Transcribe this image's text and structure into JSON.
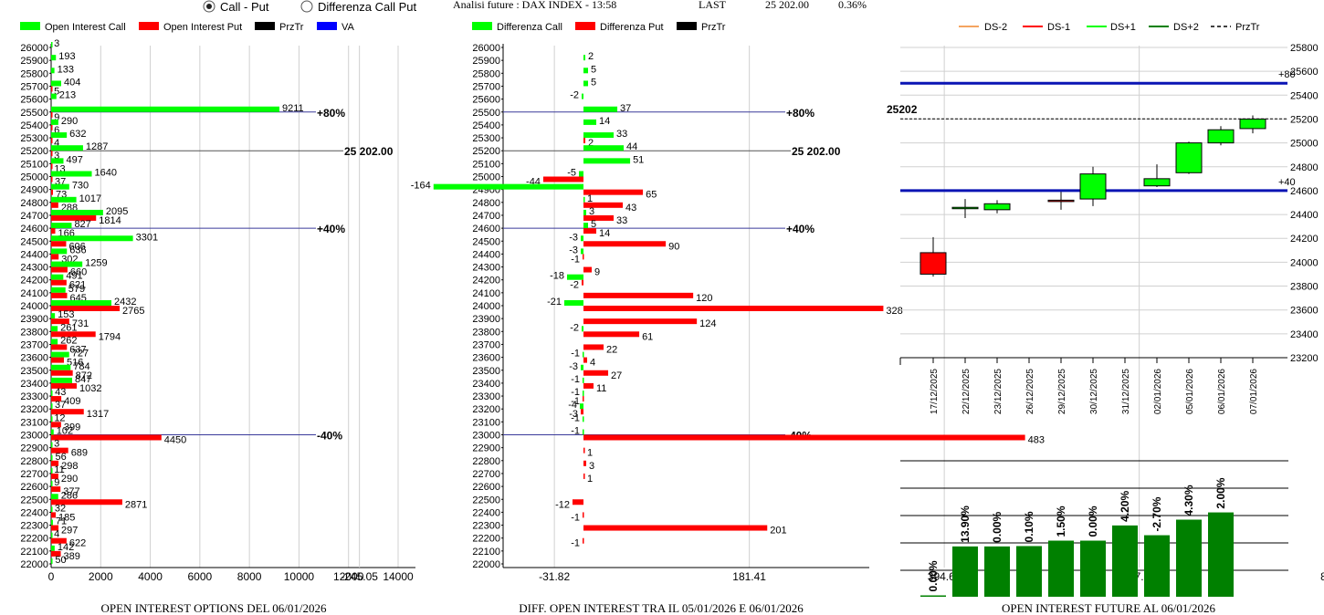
{
  "header": {
    "radio_1": "Call - Put",
    "radio_2": "Differenza Call Put",
    "analisi": "Analisi future : DAX INDEX - 13:58",
    "last_label": "LAST",
    "last_value": "25 202.00",
    "last_change": "0.36%"
  },
  "colors": {
    "green": "#00ff00",
    "red": "#ff0000",
    "black": "#000000",
    "blue": "#0000ff",
    "dark_green": "#008000",
    "navy": "#0a14b4"
  },
  "chart_data": [
    {
      "type": "bar",
      "title": "OPEN INTEREST OPTIONS DEL 06/01/2026",
      "legend": [
        "Open Interest Call",
        "Open Interest Put",
        "PrzTr",
        "VA"
      ],
      "strikes": [
        26000,
        25900,
        25800,
        25700,
        25600,
        25500,
        25400,
        25300,
        25200,
        25100,
        25000,
        24900,
        24800,
        24700,
        24600,
        24500,
        24400,
        24300,
        24200,
        24100,
        24000,
        23900,
        23800,
        23700,
        23600,
        23500,
        23400,
        23300,
        23200,
        23100,
        23000,
        22900,
        22800,
        22700,
        22600,
        22500,
        22400,
        22300,
        22200,
        22100,
        22000
      ],
      "series": [
        {
          "name": "Open Interest Call",
          "values": [
            3,
            193,
            133,
            404,
            213,
            9211,
            290,
            632,
            1287,
            497,
            1640,
            730,
            1017,
            2095,
            827,
            3301,
            636,
            1259,
            491,
            579,
            2432,
            153,
            261,
            262,
            727,
            784,
            847,
            43,
            37,
            12,
            102,
            3,
            56,
            11,
            9,
            286,
            32,
            71,
            4,
            142,
            50
          ]
        },
        {
          "name": "Open Interest Put",
          "values": [
            null,
            null,
            null,
            5,
            null,
            9,
            6,
            4,
            3,
            13,
            37,
            73,
            288,
            1814,
            166,
            606,
            302,
            660,
            621,
            645,
            2765,
            731,
            1794,
            637,
            516,
            872,
            1032,
            409,
            1317,
            399,
            4450,
            689,
            298,
            290,
            377,
            2871,
            185,
            297,
            622,
            389,
            null
          ]
        }
      ],
      "x_ticks": [
        "0",
        "2000",
        "4000",
        "6000",
        "8000",
        "10000",
        "12000",
        "14000"
      ],
      "xlim": [
        0,
        14000
      ],
      "annotations": [
        {
          "strike": 25500,
          "label": "+80%"
        },
        {
          "strike": 25200,
          "label": "25 202.00"
        },
        {
          "strike": 24600,
          "label": "+40%"
        },
        {
          "strike": 23000,
          "label": "-40%"
        }
      ]
    },
    {
      "type": "bar",
      "title": "DIFF. OPEN INTEREST TRA IL 05/01/2026 E 06/01/2026",
      "legend": [
        "Differenza Call",
        "Differenza Put",
        "PrzTr"
      ],
      "strikes": [
        26000,
        25900,
        25800,
        25700,
        25600,
        25500,
        25400,
        25300,
        25200,
        25100,
        25000,
        24900,
        24800,
        24700,
        24600,
        24500,
        24400,
        24300,
        24200,
        24100,
        24000,
        23900,
        23800,
        23700,
        23600,
        23500,
        23400,
        23300,
        23200,
        23100,
        23000,
        22900,
        22800,
        22700,
        22600,
        22500,
        22400,
        22300,
        22200,
        22100,
        22000
      ],
      "series": [
        {
          "name": "Differenza Call",
          "values": [
            null,
            2,
            5,
            5,
            -2,
            37,
            14,
            33,
            44,
            51,
            -5,
            -164,
            1,
            3,
            5,
            -3,
            -3,
            null,
            -18,
            null,
            -21,
            null,
            -2,
            null,
            -1,
            -3,
            -1,
            -1,
            -4,
            -1,
            -1,
            null,
            null,
            null,
            null,
            null,
            null,
            null,
            null,
            null,
            null
          ]
        },
        {
          "name": "Differenza Put",
          "values": [
            null,
            null,
            null,
            null,
            null,
            null,
            null,
            2,
            null,
            null,
            -44,
            65,
            43,
            33,
            14,
            90,
            -1,
            9,
            -2,
            120,
            328,
            124,
            61,
            22,
            4,
            27,
            11,
            -1,
            -3,
            null,
            483,
            1,
            3,
            1,
            null,
            -12,
            -1,
            201,
            -1,
            null,
            null
          ]
        }
      ],
      "x_ticks": [
        "-245.05",
        "-31.82",
        "181.41",
        "394.64",
        "607.87",
        "821.1"
      ],
      "xlim": [
        -245.05,
        821.1
      ],
      "annotations": [
        {
          "strike": 25500,
          "label": "+80%"
        },
        {
          "strike": 25200,
          "label": "25 202.00"
        },
        {
          "strike": 24600,
          "label": "+40%"
        },
        {
          "strike": 23000,
          "label": "-40%"
        }
      ]
    },
    {
      "type": "candlestick",
      "legend": [
        "DS-2",
        "DS-1",
        "DS+1",
        "DS+2",
        "PrzTr"
      ],
      "dates": [
        "17/12/2025",
        "22/12/2025",
        "23/12/2025",
        "26/12/2025",
        "29/12/2025",
        "30/12/2025",
        "31/12/2025",
        "02/01/2026",
        "05/01/2026",
        "06/01/2026",
        "07/01/2026"
      ],
      "ohlc": [
        [
          24080,
          24210,
          23880,
          23900
        ],
        [
          24460,
          24530,
          24370,
          24460
        ],
        [
          24440,
          24520,
          24410,
          24490
        ],
        null,
        [
          24520,
          24590,
          24440,
          24510
        ],
        [
          24530,
          24800,
          24470,
          24740
        ],
        null,
        [
          24640,
          24820,
          24630,
          24700
        ],
        [
          24750,
          25010,
          24740,
          25000
        ],
        [
          25000,
          25140,
          24980,
          25110
        ],
        [
          25120,
          25230,
          25080,
          25200
        ]
      ],
      "y_ticks": [
        "25800",
        "25600",
        "25400",
        "25200",
        "25000",
        "24800",
        "24600",
        "24400",
        "24200",
        "24000",
        "23800",
        "23600",
        "23400",
        "23200"
      ],
      "ylim": [
        23200,
        25800
      ],
      "price_label": "25202",
      "price_line": 25202,
      "blue_lines": [
        {
          "value": 25500,
          "label": "+80"
        },
        {
          "value": 24600,
          "label": "+40"
        }
      ]
    },
    {
      "type": "bar",
      "title": "OPEN INTEREST FUTURE AL 06/01/2026",
      "values": [
        0,
        13.9,
        0,
        0.1,
        1.5,
        0,
        4.2,
        -2.7,
        4.3,
        2.0
      ],
      "labels": [
        "0.00%",
        "13.90%",
        "0.00%",
        "0.10%",
        "1.50%",
        "0.00%",
        "4.20%",
        "-2.70%",
        "4.30%",
        "2.00%"
      ]
    }
  ]
}
